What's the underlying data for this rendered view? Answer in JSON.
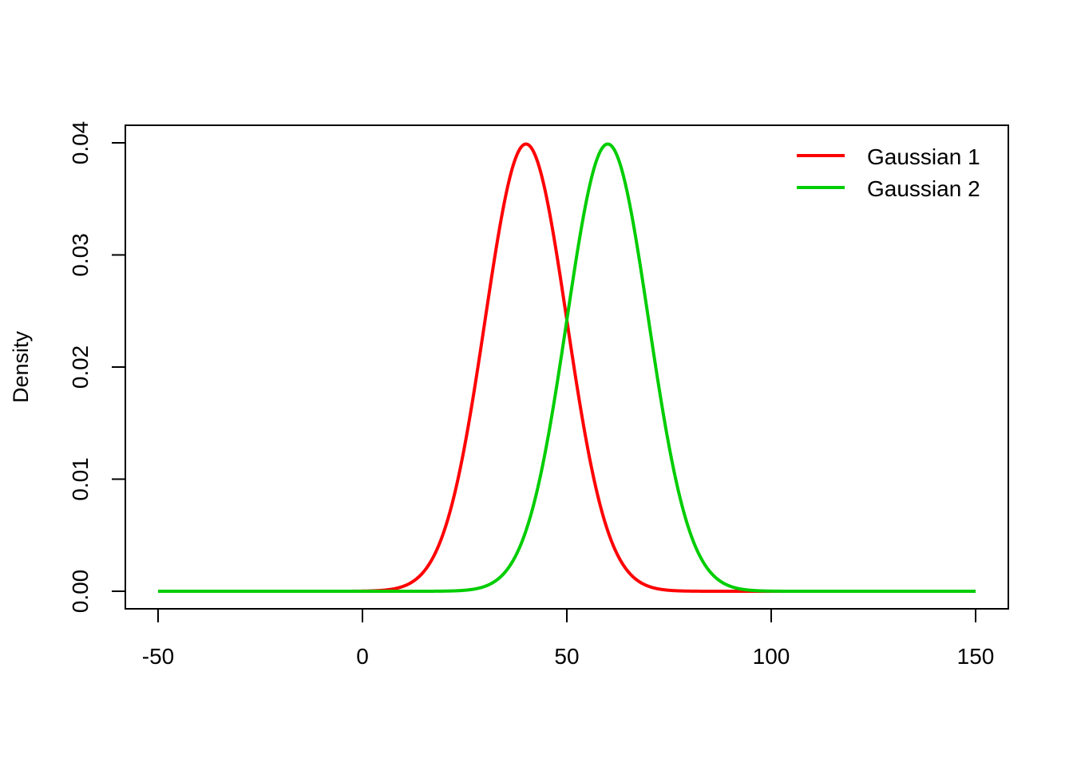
{
  "chart_data": {
    "type": "line",
    "title": "",
    "xlabel": "",
    "ylabel": "Density",
    "xlim": [
      -50,
      150
    ],
    "ylim": [
      0,
      0.04
    ],
    "x_ticks": [
      -50,
      0,
      50,
      100,
      150
    ],
    "x_tick_labels": [
      "-50",
      "0",
      "50",
      "100",
      "150"
    ],
    "y_ticks": [
      0,
      0.01,
      0.02,
      0.03,
      0.04
    ],
    "y_tick_labels": [
      "0.00",
      "0.01",
      "0.02",
      "0.03",
      "0.04"
    ],
    "grid": false,
    "legend_position": "top-right",
    "series": [
      {
        "name": "Gaussian 1",
        "color": "#ff0000",
        "distribution": "normal",
        "mean": 40,
        "sd": 10
      },
      {
        "name": "Gaussian 2",
        "color": "#00cd00",
        "distribution": "normal",
        "mean": 60,
        "sd": 10
      }
    ]
  }
}
